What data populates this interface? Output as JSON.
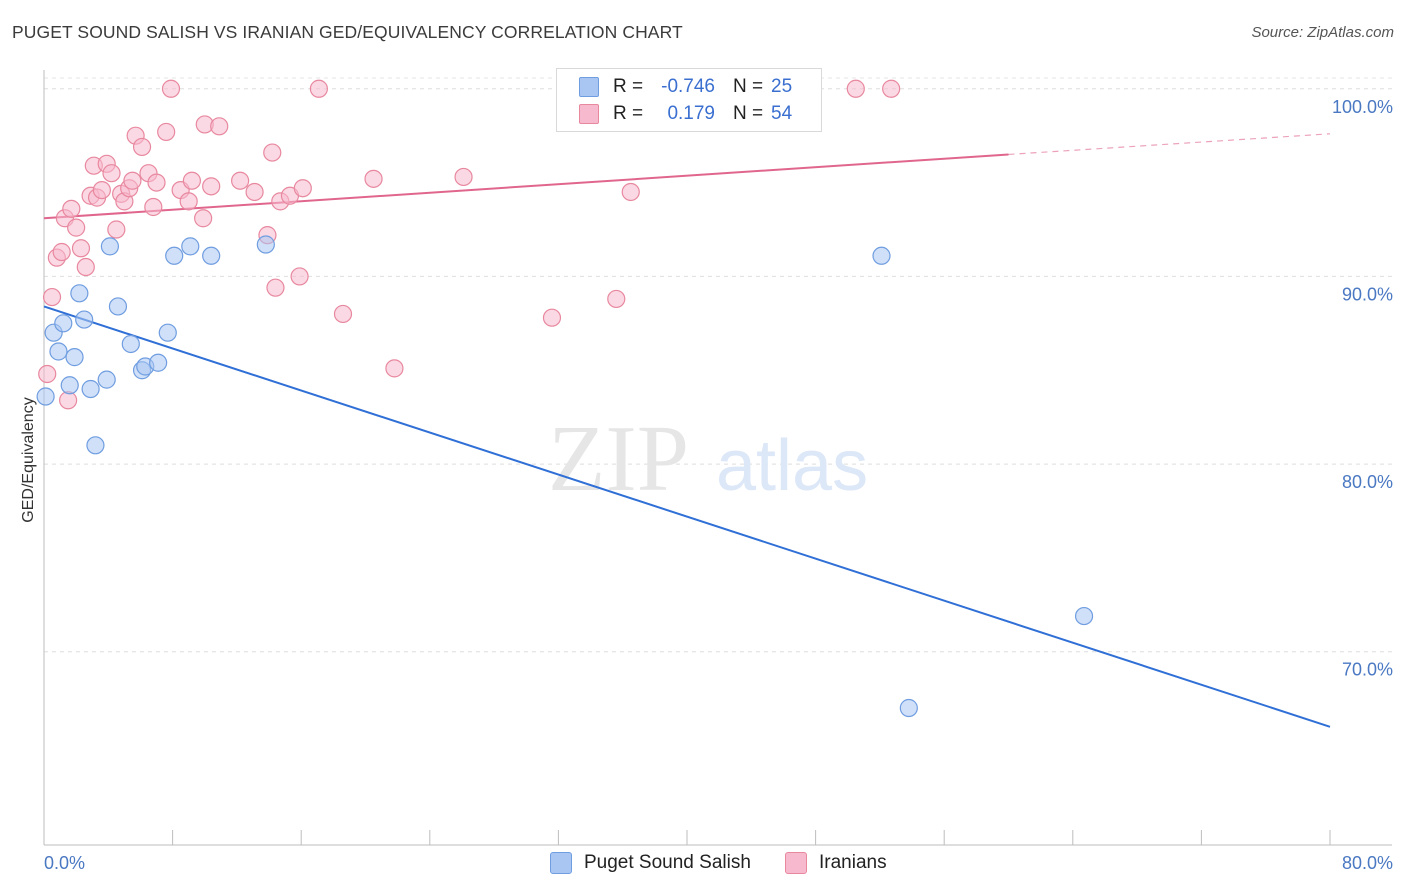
{
  "title": "PUGET SOUND SALISH VS IRANIAN GED/EQUIVALENCY CORRELATION CHART",
  "source": "Source: ZipAtlas.com",
  "watermark": {
    "zip": "ZIP",
    "atlas": "atlas"
  },
  "legend": {
    "rows": [
      {
        "r_label": "R =",
        "r_value": "-0.746",
        "n_label": "N =",
        "n_value": "25",
        "color": "#a9c6f2",
        "border": "#6f9de0"
      },
      {
        "r_label": "R =",
        "r_value": "0.179",
        "n_label": "N =",
        "n_value": "54",
        "color": "#f7b9cd",
        "border": "#e8889f"
      }
    ]
  },
  "bottom_legend": [
    "Puget Sound Salish",
    "Iranians"
  ],
  "chart_data": {
    "type": "scatter",
    "title": "PUGET SOUND SALISH VS IRANIAN GED/EQUIVALENCY CORRELATION CHART",
    "xlabel": "",
    "ylabel": "GED/Equivalency",
    "xlim": [
      0,
      80
    ],
    "ylim": [
      59.7,
      101
    ],
    "x_tick_labels": [
      "0.0%",
      "80.0%"
    ],
    "y_ticks": [
      70,
      80,
      90,
      100
    ],
    "y_tick_labels": [
      "70.0%",
      "80.0%",
      "90.0%",
      "100.0%"
    ],
    "grid": true,
    "series": [
      {
        "name": "Puget Sound Salish",
        "color": "#a9c6f2",
        "stroke": "#6f9de0",
        "line_color": "#2f6fd6",
        "trend": {
          "x": [
            0,
            80
          ],
          "y": [
            88.4,
            66.0
          ]
        },
        "points": [
          [
            0.1,
            83.6
          ],
          [
            0.6,
            87.0
          ],
          [
            0.9,
            86.0
          ],
          [
            1.2,
            87.5
          ],
          [
            1.6,
            84.2
          ],
          [
            1.9,
            85.7
          ],
          [
            2.2,
            89.1
          ],
          [
            2.5,
            87.7
          ],
          [
            2.9,
            84.0
          ],
          [
            3.2,
            81.0
          ],
          [
            3.9,
            84.5
          ],
          [
            4.1,
            91.6
          ],
          [
            4.6,
            88.4
          ],
          [
            5.4,
            86.4
          ],
          [
            6.1,
            85.0
          ],
          [
            6.3,
            85.2
          ],
          [
            7.1,
            85.4
          ],
          [
            7.7,
            87.0
          ],
          [
            8.1,
            91.1
          ],
          [
            9.1,
            91.6
          ],
          [
            10.4,
            91.1
          ],
          [
            13.8,
            91.7
          ],
          [
            52.1,
            91.1
          ],
          [
            64.7,
            71.9
          ],
          [
            53.8,
            67.0
          ]
        ]
      },
      {
        "name": "Iranians",
        "color": "#f7b9cd",
        "stroke": "#e8889f",
        "line_color": "#e0668d",
        "trend": {
          "x": [
            0,
            60
          ],
          "y": [
            93.1,
            96.5
          ]
        },
        "trend_dashed": {
          "x": [
            60,
            80
          ],
          "y": [
            96.5,
            97.6
          ]
        },
        "points": [
          [
            0.2,
            84.8
          ],
          [
            0.5,
            88.9
          ],
          [
            0.8,
            91.0
          ],
          [
            1.1,
            91.3
          ],
          [
            1.3,
            93.1
          ],
          [
            1.5,
            83.4
          ],
          [
            1.7,
            93.6
          ],
          [
            2.0,
            92.6
          ],
          [
            2.3,
            91.5
          ],
          [
            2.6,
            90.5
          ],
          [
            2.9,
            94.3
          ],
          [
            3.1,
            95.9
          ],
          [
            3.3,
            94.2
          ],
          [
            3.6,
            94.6
          ],
          [
            3.9,
            96.0
          ],
          [
            4.2,
            95.5
          ],
          [
            4.5,
            92.5
          ],
          [
            4.8,
            94.4
          ],
          [
            5.0,
            94.0
          ],
          [
            5.3,
            94.7
          ],
          [
            5.5,
            95.1
          ],
          [
            5.7,
            97.5
          ],
          [
            6.1,
            96.9
          ],
          [
            6.5,
            95.5
          ],
          [
            6.8,
            93.7
          ],
          [
            7.0,
            95.0
          ],
          [
            7.6,
            97.7
          ],
          [
            7.9,
            100.0
          ],
          [
            8.5,
            94.6
          ],
          [
            9.0,
            94.0
          ],
          [
            9.2,
            95.1
          ],
          [
            9.9,
            93.1
          ],
          [
            10.0,
            98.1
          ],
          [
            10.4,
            94.8
          ],
          [
            10.9,
            98.0
          ],
          [
            12.2,
            95.1
          ],
          [
            13.1,
            94.5
          ],
          [
            13.9,
            92.2
          ],
          [
            14.2,
            96.6
          ],
          [
            14.4,
            89.4
          ],
          [
            14.7,
            94.0
          ],
          [
            15.3,
            94.3
          ],
          [
            15.9,
            90.0
          ],
          [
            16.1,
            94.7
          ],
          [
            17.1,
            100.0
          ],
          [
            18.6,
            88.0
          ],
          [
            20.5,
            95.2
          ],
          [
            21.8,
            85.1
          ],
          [
            26.1,
            95.3
          ],
          [
            31.6,
            87.8
          ],
          [
            35.6,
            88.8
          ],
          [
            36.5,
            94.5
          ],
          [
            50.5,
            100.0
          ],
          [
            52.7,
            100.0
          ]
        ]
      }
    ]
  }
}
